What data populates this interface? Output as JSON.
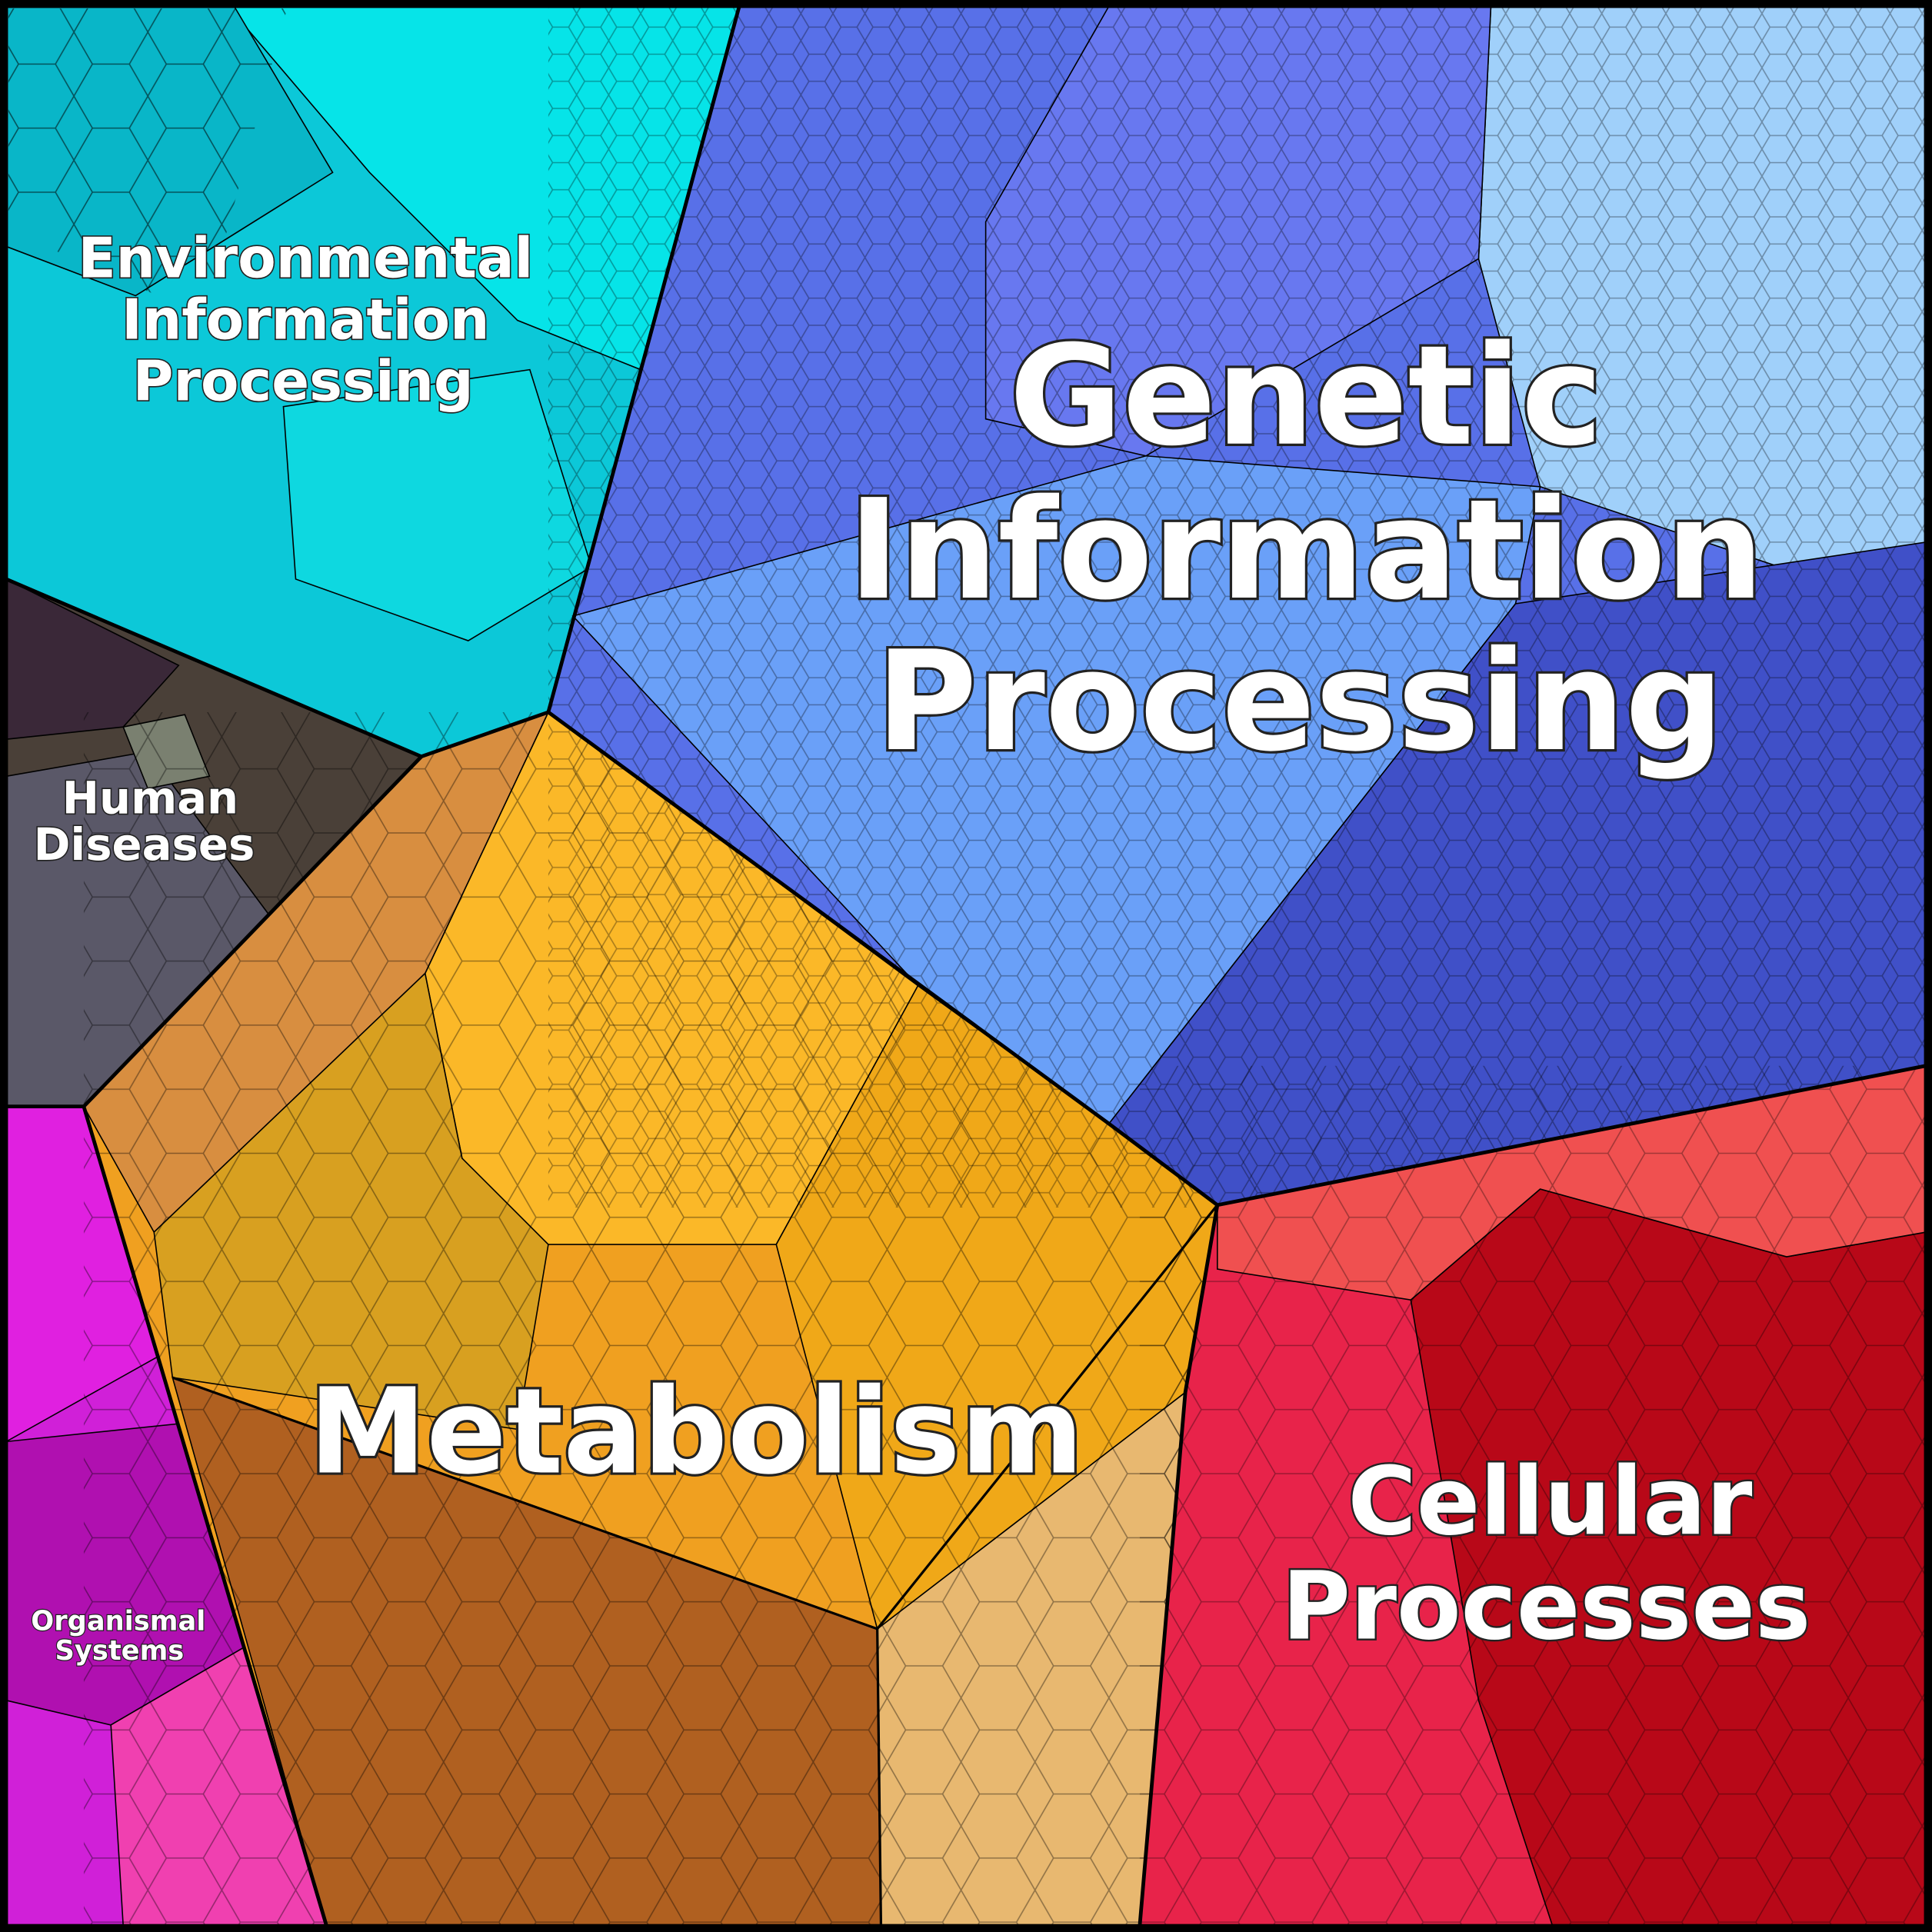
{
  "regions": [
    {
      "label": [
        "Genetic",
        "Information",
        "Processing"
      ]
    },
    {
      "label": [
        "Metabolism"
      ]
    },
    {
      "label": [
        "Cellular",
        "Processes"
      ]
    },
    {
      "label": [
        "Environmental",
        "Information",
        "Processing"
      ]
    },
    {
      "label": [
        "Human",
        "Diseases"
      ]
    },
    {
      "label": [
        "Organismal",
        "Systems"
      ]
    }
  ]
}
